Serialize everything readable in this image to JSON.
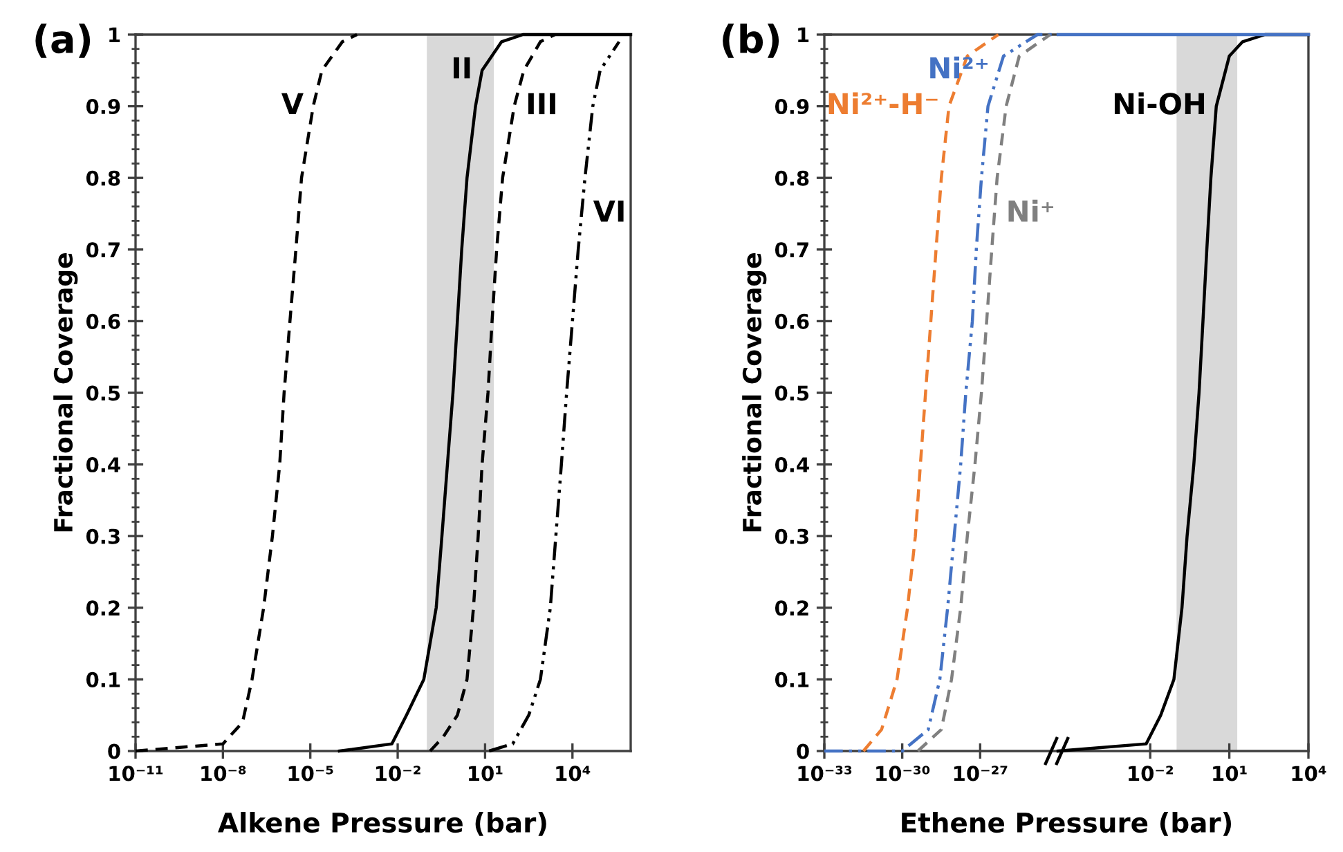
{
  "chart_data": [
    {
      "type": "line",
      "title": "(a)",
      "xlabel": "Alkene Pressure (bar)",
      "ylabel": "Fractional Coverage",
      "log": "x",
      "xlim": [
        1e-11,
        1000000.0
      ],
      "xticks": [
        {
          "value": 1e-11,
          "label": "10⁻¹¹"
        },
        {
          "value": 1e-08,
          "label": "10⁻⁸"
        },
        {
          "value": 1e-05,
          "label": "10⁻⁵"
        },
        {
          "value": 0.01,
          "label": "10⁻²"
        },
        {
          "value": 10,
          "label": "10¹"
        },
        {
          "value": 10000,
          "label": "10⁴"
        }
      ],
      "ylim": [
        0,
        1
      ],
      "yticks": [
        0,
        0.1,
        0.2,
        0.3,
        0.4,
        0.5,
        0.6,
        0.7,
        0.8,
        0.9,
        1
      ],
      "grid": false,
      "legend": false,
      "bands": [
        {
          "axis": "x",
          "from": 0.1,
          "to": 20,
          "color": "#c5c5c5"
        }
      ],
      "series": [
        {
          "name": "V",
          "color": "#000000",
          "line_style": "dashed",
          "x": [
            1e-11,
            1e-08,
            4.7e-08,
            1e-07,
            2.5e-07,
            5e-07,
            8.9e-07,
            1.26e-06,
            2e-06,
            3.2e-06,
            5e-06,
            1.26e-05,
            2.5e-05,
            0.000126,
            0.0004
          ],
          "values": [
            0,
            0.01,
            0.04,
            0.1,
            0.2,
            0.3,
            0.4,
            0.5,
            0.6,
            0.7,
            0.8,
            0.9,
            0.95,
            0.99,
            1
          ]
        },
        {
          "name": "II",
          "color": "#000000",
          "line_style": "solid",
          "x": [
            0.0001,
            0.0063,
            0.02,
            0.079,
            0.21,
            0.33,
            0.51,
            0.79,
            1.12,
            1.58,
            2.4,
            4.7,
            7.9,
            37,
            200,
            1000000.0
          ],
          "values": [
            0,
            0.01,
            0.05,
            0.1,
            0.2,
            0.3,
            0.4,
            0.5,
            0.6,
            0.7,
            0.8,
            0.9,
            0.95,
            0.99,
            1,
            1
          ]
        },
        {
          "name": "III",
          "color": "#000000",
          "line_style": "dashed",
          "x": [
            0.13,
            0.37,
            1.12,
            2.4,
            4,
            5.8,
            7.9,
            12.6,
            17.4,
            25,
            40,
            100,
            214,
            794,
            2500
          ],
          "values": [
            0,
            0.02,
            0.05,
            0.1,
            0.2,
            0.3,
            0.4,
            0.5,
            0.6,
            0.7,
            0.8,
            0.9,
            0.95,
            0.99,
            1
          ]
        },
        {
          "name": "VI",
          "color": "#000000",
          "line_style": "dotted",
          "x": [
            13.8,
            89,
            316,
            794,
            1740,
            2690,
            4170,
            6310,
            10000,
            15800,
            26900,
            50000,
            89000,
            398000
          ],
          "values": [
            0,
            0.01,
            0.05,
            0.1,
            0.2,
            0.3,
            0.4,
            0.5,
            0.6,
            0.7,
            0.8,
            0.9,
            0.95,
            0.99
          ]
        }
      ]
    },
    {
      "type": "line",
      "title": "(b)",
      "xlabel": "Ethene Pressure (bar)",
      "ylabel": "Fractional Coverage",
      "log": "x",
      "xlim": [
        1e-33,
        1e-24
      ],
      "xticks": [
        {
          "value": 1e-33,
          "label": "10⁻³³"
        },
        {
          "value": 1e-30,
          "label": "10⁻³⁰"
        },
        {
          "value": 1e-27,
          "label": "10⁻²⁷"
        }
      ],
      "ylim": [
        0,
        1
      ],
      "yticks": [
        0,
        0.1,
        0.2,
        0.3,
        0.4,
        0.5,
        0.6,
        0.7,
        0.8,
        0.9,
        1
      ],
      "grid": false,
      "legend": false,
      "series": [
        {
          "name": "Ni²⁺-H⁻",
          "color": "#ed7d31",
          "line_style": "dashed",
          "x": [
            3.2e-32,
            1.6e-31,
            6.3e-31,
            1.6e-30,
            3.2e-30,
            5e-30,
            7.9e-30,
            1.26e-29,
            2e-29,
            3.2e-29,
            6.3e-29,
            3.2e-28,
            5e-27
          ],
          "values": [
            0,
            0.03,
            0.1,
            0.2,
            0.3,
            0.4,
            0.5,
            0.6,
            0.7,
            0.8,
            0.9,
            0.97,
            1
          ]
        },
        {
          "name": "Ni²⁺",
          "color": "#4472c4",
          "line_style": "dotted",
          "x": [
            1e-33,
            1e-30,
            1e-29,
            2.8e-29,
            5.6e-29,
            1e-28,
            1.78e-28,
            2.8e-28,
            5e-28,
            7.1e-28,
            1.12e-27,
            2e-27,
            7.9e-27,
            1.6e-25,
            1e-24
          ],
          "values": [
            0,
            0,
            0.03,
            0.1,
            0.2,
            0.3,
            0.4,
            0.5,
            0.6,
            0.7,
            0.8,
            0.9,
            0.97,
            1,
            1
          ]
        },
        {
          "name": "Ni⁺",
          "color": "#808080",
          "line_style": "dashed",
          "x": [
            4e-30,
            3.2e-29,
            7.9e-29,
            1.78e-28,
            3.2e-28,
            6.3e-28,
            1.12e-27,
            1.78e-27,
            2.8e-27,
            4.5e-27,
            1e-26,
            3.2e-26,
            5e-25
          ],
          "values": [
            0,
            0.03,
            0.1,
            0.2,
            0.3,
            0.4,
            0.5,
            0.6,
            0.7,
            0.8,
            0.9,
            0.97,
            1
          ]
        }
      ]
    },
    {
      "type": "line",
      "log": "x",
      "tick_labels": "x",
      "xlim": [
        3.2e-06,
        10000
      ],
      "xticks": [
        {
          "value": 0.01,
          "label": "10⁻²"
        },
        {
          "value": 10,
          "label": "10¹"
        },
        {
          "value": 10000,
          "label": "10⁴"
        }
      ],
      "ylim": [
        0,
        1
      ],
      "grid": false,
      "legend": false,
      "bands": [
        {
          "axis": "x",
          "from": 0.1,
          "to": 20,
          "color": "#c5c5c5"
        }
      ],
      "series": [
        {
          "name": "Ni-OH",
          "color": "#000000",
          "line_style": "solid",
          "x": [
            3.2e-06,
            0.007,
            0.025,
            0.079,
            0.16,
            0.25,
            0.45,
            0.71,
            1,
            1.4,
            2,
            3.2,
            10,
            32,
            224,
            10000
          ],
          "values": [
            0,
            0.01,
            0.05,
            0.1,
            0.2,
            0.3,
            0.4,
            0.5,
            0.6,
            0.7,
            0.8,
            0.9,
            0.97,
            0.99,
            1,
            1
          ]
        },
        {
          "color": "#4472c4",
          "line_style": "solid",
          "x": [
            3.2e-06,
            10000
          ],
          "values": [
            1,
            1
          ]
        }
      ]
    }
  ]
}
